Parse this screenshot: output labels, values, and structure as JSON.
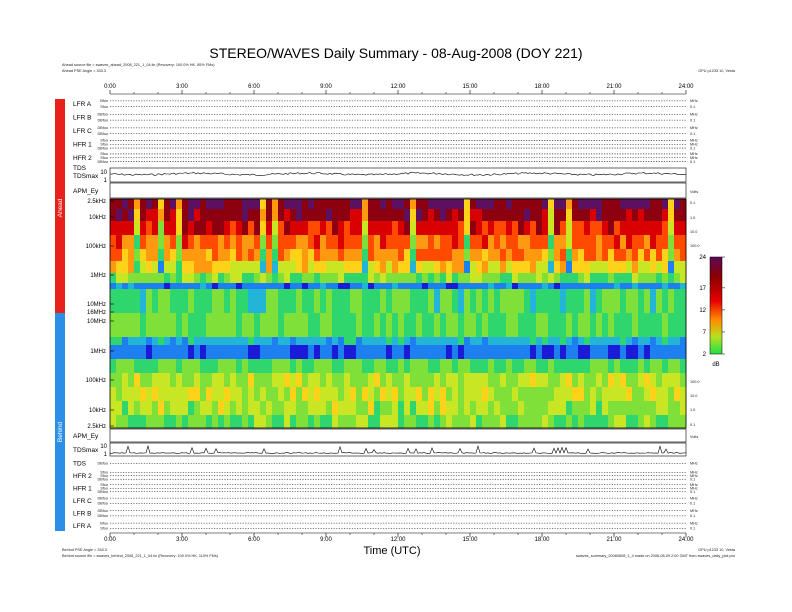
{
  "chart_data": {
    "type": "heatmap",
    "title": "STEREO/WAVES Daily Summary - 08-Aug-2008 (DOY 221)",
    "xlabel": "Time (UTC)",
    "x_ticks": [
      "0:00",
      "3:00",
      "6:00",
      "9:00",
      "12:00",
      "15:00",
      "18:00",
      "21:00",
      "24:00"
    ],
    "x_range_hours": [
      0,
      24
    ],
    "ahead": {
      "label": "Ahead",
      "color": "#e8211a",
      "source_line": "Ahead source file = swaves_ahead_2008_221_1_04.lin (Recovery: 100.0% HK, 85% FMs)",
      "angle_line": "Ahead PSE Angle = 333.3",
      "channels_top": [
        {
          "name": "LFR A",
          "sub": [
            "Bfoo",
            "Sfoo"
          ],
          "right": [
            "MHz",
            "0.1"
          ]
        },
        {
          "name": "LFR B",
          "sub": [
            "DBfoo",
            "DBfoo"
          ],
          "right": [
            "MHz",
            "0.1"
          ]
        },
        {
          "name": "LFR C",
          "sub": [
            "DBfoo",
            "DBfoo"
          ],
          "right": [
            "MHz",
            "0.1"
          ]
        },
        {
          "name": "HFR 1",
          "sub": [
            "Sfoo",
            "Sfoo",
            "DBfoo"
          ],
          "right": [
            "MHz",
            "MHz",
            "0.1"
          ]
        },
        {
          "name": "HFR 2",
          "sub": [
            "Sfoo",
            "Sfoo",
            "DBfoo"
          ],
          "right": [
            "MHz",
            "MHz",
            "0.1"
          ]
        },
        {
          "name": "TDS",
          "sub": [
            "DBfoo"
          ],
          "right": [
            "MHz"
          ]
        }
      ],
      "tdsmax_label": "TDSmax",
      "tdsmax_range": [
        "10",
        "1"
      ],
      "apm_label": "APM_Ey",
      "apm_right": "Volts"
    },
    "behind": {
      "label": "Behind",
      "color": "#2b8fe8",
      "source_line": "Behind source file = swaves_behind_2008_221_1_04.lin (Recovery: 100.0% HK, 110% FMs)",
      "angle_line": "Behind PSE Angle = 333.3",
      "apm_label": "APM_Ey",
      "apm_right": "Volts",
      "tdsmax_label": "TDSmax",
      "tdsmax_range": [
        "10",
        "1"
      ],
      "channels_bottom": [
        {
          "name": "TDS",
          "sub": [
            "DBfoo"
          ],
          "right": [
            "MHz"
          ]
        },
        {
          "name": "HFR 2",
          "sub": [
            "Sfoo",
            "Sfoo",
            "DBfoo"
          ],
          "right": [
            "MHz",
            "MHz",
            "0.1"
          ]
        },
        {
          "name": "HFR 1",
          "sub": [
            "Sfoo",
            "Sfoo",
            "DBfoo"
          ],
          "right": [
            "MHz",
            "MHz",
            "0.1"
          ]
        },
        {
          "name": "LFR C",
          "sub": [
            "DBfoo",
            "DBfoo"
          ],
          "right": [
            "MHz",
            "0.1"
          ]
        },
        {
          "name": "LFR B",
          "sub": [
            "DBfoo",
            "DBfoo"
          ],
          "right": [
            "MHz",
            "0.1"
          ]
        },
        {
          "name": "LFR A",
          "sub": [
            "Bfoo",
            "Sfoo"
          ],
          "right": [
            "MHz",
            "0.1"
          ]
        }
      ]
    },
    "freq_ticks_ahead": [
      "2.5kHz",
      "10kHz",
      "100kHz",
      "1MHz",
      "10MHz"
    ],
    "freq_ticks_behind": [
      "16MHz",
      "10MHz",
      "1MHz",
      "100kHz",
      "10kHz",
      "2.5kHz"
    ],
    "right_axis_ahead": [
      "0.1",
      "1.0",
      "10.0",
      "100.0"
    ],
    "right_axis_behind": [
      "100.0",
      "10.0",
      "1.0",
      "0.1"
    ],
    "colorbar": {
      "label": "dB",
      "min": 2,
      "max": 24,
      "ticks": [
        2,
        7,
        12,
        17,
        24
      ]
    },
    "footer_right_top": "GPU p1233 10, Vesta",
    "footer_right_bottom": "GPU p1233 10, Vesta",
    "footer_program": "swaves_summary_20080808_1_4 made on 2008-08-09 2:00 GMT from swaves_daily_plot.pro"
  }
}
